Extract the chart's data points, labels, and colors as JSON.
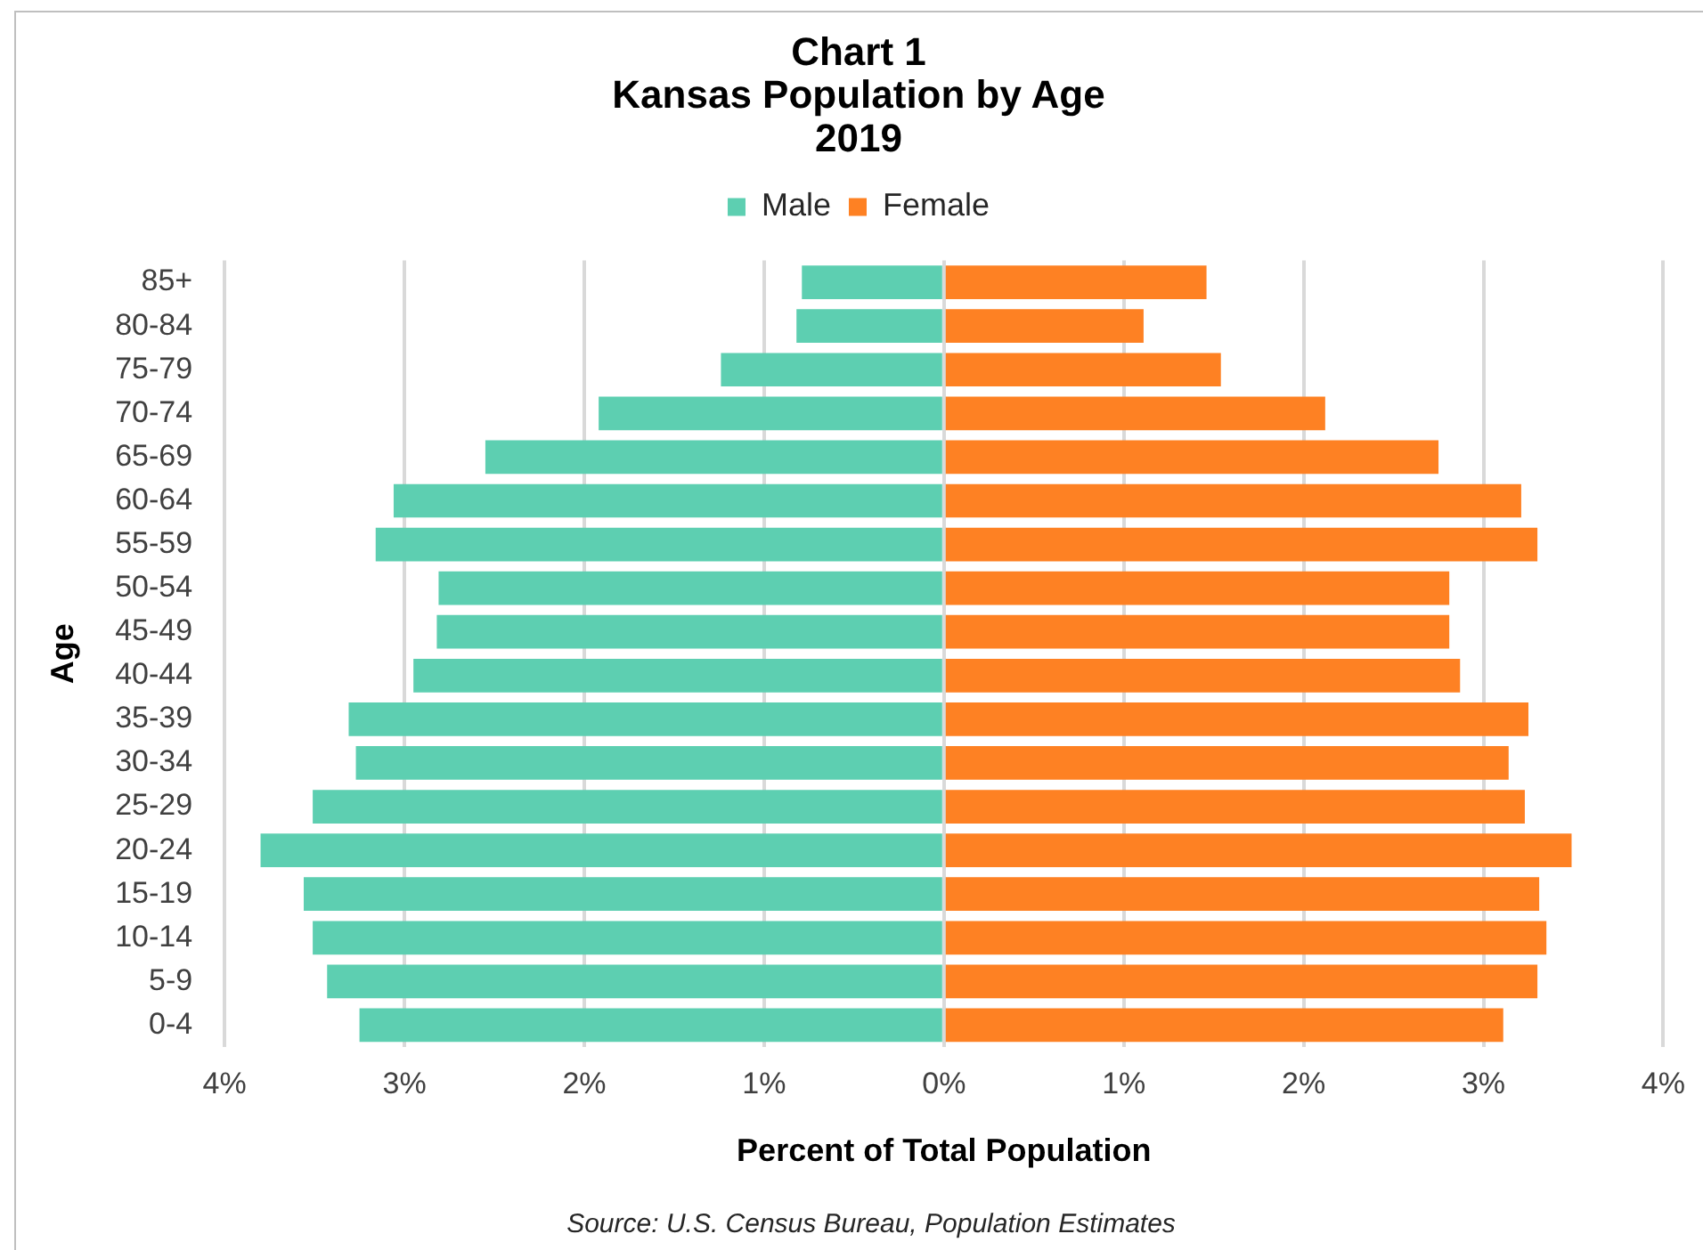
{
  "chart_data": {
    "type": "bar",
    "orientation": "horizontal",
    "stacked": true,
    "title": "Chart 1\nKansas Population by Age\n2019",
    "xlabel": "Percent of Total Population",
    "ylabel": "Age",
    "annotations": [
      "Source: U.S. Census Bureau, Population Estimates"
    ],
    "categories": [
      "85+",
      "80-84",
      "75-79",
      "70-74",
      "65-69",
      "60-64",
      "55-59",
      "50-54",
      "45-49",
      "40-44",
      "35-39",
      "30-34",
      "25-29",
      "20-24",
      "15-19",
      "10-14",
      "5-9",
      "0-4"
    ],
    "series": [
      {
        "name": "Male",
        "color": "#5dcfb1",
        "values": [
          -0.79,
          -0.82,
          -1.24,
          -1.92,
          -2.55,
          -3.06,
          -3.16,
          -2.81,
          -2.82,
          -2.95,
          -3.31,
          -3.27,
          -3.51,
          -3.8,
          -3.56,
          -3.51,
          -3.43,
          -3.25
        ]
      },
      {
        "name": "Female",
        "color": "#fe8123",
        "values": [
          1.46,
          1.11,
          1.54,
          2.12,
          2.75,
          3.21,
          3.3,
          2.81,
          2.81,
          2.87,
          3.25,
          3.14,
          3.23,
          3.49,
          3.31,
          3.35,
          3.3,
          3.11
        ]
      }
    ],
    "xlim": [
      -4,
      4
    ],
    "xticks": [
      {
        "value": -4,
        "label": "4%"
      },
      {
        "value": -3,
        "label": "3%"
      },
      {
        "value": -2,
        "label": "2%"
      },
      {
        "value": -1,
        "label": "1%"
      },
      {
        "value": 0,
        "label": "0%"
      },
      {
        "value": 1,
        "label": "1%"
      },
      {
        "value": 2,
        "label": "2%"
      },
      {
        "value": 3,
        "label": "3%"
      },
      {
        "value": 4,
        "label": "4%"
      }
    ],
    "grid": "x",
    "legend": "top"
  }
}
